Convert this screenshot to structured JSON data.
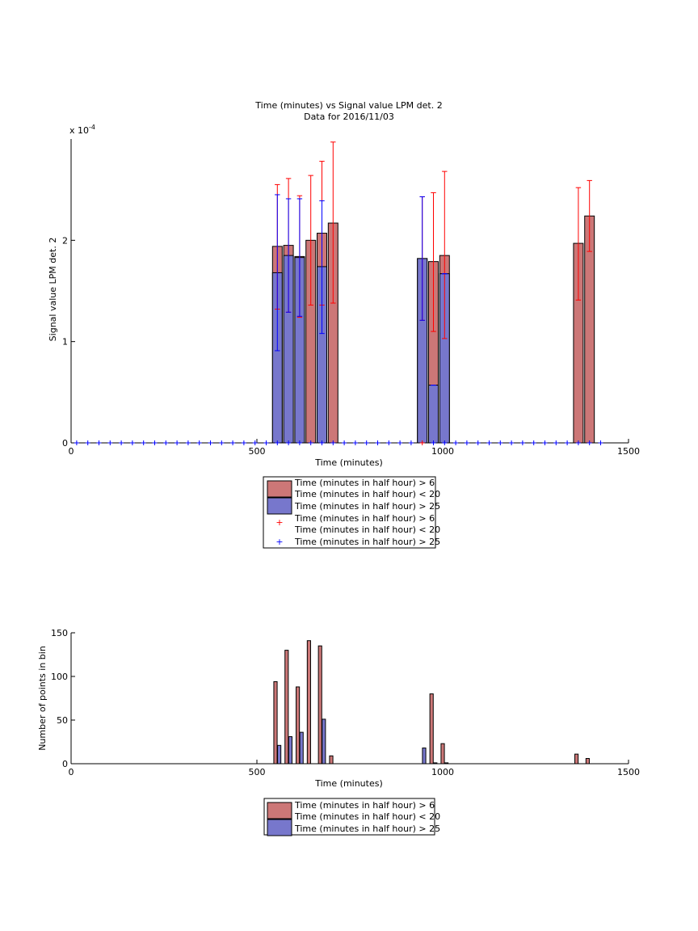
{
  "colors": {
    "red_fill": "#cc7777",
    "red_line": "#ff0000",
    "blue_fill": "#7777cc",
    "blue_line": "#0000ff",
    "axis": "#000000"
  },
  "chart_data": [
    {
      "type": "bar",
      "title": "Time (minutes) vs Signal value LPM det. 2",
      "subtitle": "Data for 2016/11/03",
      "xlabel": "Time (minutes)",
      "ylabel": "Signal value LPM det. 2",
      "y_exponent_label": "x 10",
      "y_exponent_power": "-4",
      "xlim": [
        0,
        1500
      ],
      "ylim": [
        0,
        0.0003
      ],
      "xticks": [
        0,
        500,
        1000,
        1500
      ],
      "xtick_labels": [
        "0",
        "500",
        "1000",
        "1500"
      ],
      "yticks": [
        0,
        0.0001,
        0.0002
      ],
      "ytick_labels": [
        "0",
        "1",
        "2"
      ],
      "grid": false,
      "legend_position": "below",
      "series": [
        {
          "name": "Time (minutes in half hour) > 6 Time (minutes in half hour) < 20",
          "kind": "bar",
          "color": "#cc7777",
          "points": [
            {
              "x": 555,
              "y": 0.000194,
              "err_low": 0.000132,
              "err_high": 0.000255
            },
            {
              "x": 585,
              "y": 0.000195,
              "err_low": 0.000129,
              "err_high": 0.000261
            },
            {
              "x": 615,
              "y": 0.000184,
              "err_low": 0.000124,
              "err_high": 0.000244
            },
            {
              "x": 645,
              "y": 0.0002,
              "err_low": 0.000136,
              "err_high": 0.000264
            },
            {
              "x": 675,
              "y": 0.000207,
              "err_low": 0.000136,
              "err_high": 0.000278
            },
            {
              "x": 705,
              "y": 0.000217,
              "err_low": 0.000138,
              "err_high": 0.000297
            },
            {
              "x": 945,
              "y": 0.000182,
              "err_low": 0.000121,
              "err_high": 0.000243
            },
            {
              "x": 975,
              "y": 0.000179,
              "err_low": 0.00011,
              "err_high": 0.000247
            },
            {
              "x": 1005,
              "y": 0.000185,
              "err_low": 0.000103,
              "err_high": 0.000268
            },
            {
              "x": 1365,
              "y": 0.000197,
              "err_low": 0.000141,
              "err_high": 0.000252
            },
            {
              "x": 1395,
              "y": 0.000224,
              "err_low": 0.000189,
              "err_high": 0.000259
            }
          ]
        },
        {
          "name": "Time (minutes in half hour) > 25",
          "kind": "bar",
          "color": "#7777cc",
          "points": [
            {
              "x": 555,
              "y": 0.000168,
              "err_low": 9.1e-05,
              "err_high": 0.000245
            },
            {
              "x": 585,
              "y": 0.000185,
              "err_low": 0.000129,
              "err_high": 0.000241
            },
            {
              "x": 615,
              "y": 0.000183,
              "err_low": 0.000125,
              "err_high": 0.000241
            },
            {
              "x": 675,
              "y": 0.000174,
              "err_low": 0.000108,
              "err_high": 0.000239
            },
            {
              "x": 945,
              "y": 0.000182,
              "err_low": 0.000121,
              "err_high": 0.000243
            },
            {
              "x": 975,
              "y": 5.7e-05,
              "err_low": 5.7e-05,
              "err_high": 5.7e-05
            },
            {
              "x": 1005,
              "y": 0.000167,
              "err_low": 0.000167,
              "err_high": 0.000167
            }
          ]
        },
        {
          "name": "Time (minutes in half hour) > 6 Time (minutes in half hour) < 20",
          "kind": "marker",
          "marker": "+",
          "color": "#ff0000",
          "x": [
            945
          ],
          "y": [
            0
          ]
        },
        {
          "name": "Time (minutes in half hour) > 25",
          "kind": "marker",
          "marker": "+",
          "color": "#0000ff",
          "x": [
            15,
            45,
            75,
            105,
            135,
            165,
            195,
            225,
            255,
            285,
            315,
            345,
            375,
            405,
            435,
            465,
            495,
            525,
            555,
            585,
            615,
            645,
            675,
            705,
            735,
            765,
            795,
            825,
            855,
            885,
            915,
            975,
            1005,
            1035,
            1065,
            1095,
            1125,
            1155,
            1185,
            1215,
            1245,
            1275,
            1305,
            1335,
            1365,
            1395,
            1425
          ],
          "y": [
            0,
            0,
            0,
            0,
            0,
            0,
            0,
            0,
            0,
            0,
            0,
            0,
            0,
            0,
            0,
            0,
            0,
            0,
            0,
            0,
            0,
            0,
            0,
            0,
            0,
            0,
            0,
            0,
            0,
            0,
            0,
            0,
            0,
            0,
            0,
            0,
            0,
            0,
            0,
            0,
            0,
            0,
            0,
            0,
            0,
            0,
            0
          ]
        }
      ],
      "legend": [
        {
          "label_line1": "Time (minutes in half hour) > 6",
          "label_line2": "Time (minutes in half hour) < 20",
          "symbol": "patch",
          "color": "#cc7777"
        },
        {
          "label_line1": "Time (minutes in half hour) > 25",
          "symbol": "patch",
          "color": "#7777cc"
        },
        {
          "label_line1": "Time (minutes in half hour) > 6",
          "label_line2": "Time (minutes in half hour) < 20",
          "symbol": "+",
          "color": "#ff0000"
        },
        {
          "label_line1": "Time (minutes in half hour) > 25",
          "symbol": "+",
          "color": "#0000ff"
        }
      ]
    },
    {
      "type": "bar",
      "title": "",
      "xlabel": "Time (minutes)",
      "ylabel": "Number of points in bin",
      "xlim": [
        0,
        1500
      ],
      "ylim": [
        0,
        150
      ],
      "xticks": [
        0,
        500,
        1000,
        1500
      ],
      "xtick_labels": [
        "0",
        "500",
        "1000",
        "1500"
      ],
      "yticks": [
        0,
        50,
        100,
        150
      ],
      "ytick_labels": [
        "0",
        "50",
        "100",
        "150"
      ],
      "grid": false,
      "legend_position": "below",
      "series": [
        {
          "name": "Time (minutes in half hour) > 6 Time (minutes in half hour) < 20",
          "color": "#cc7777",
          "x": [
            550,
            580,
            610,
            640,
            670,
            700,
            970,
            1000,
            1360,
            1390
          ],
          "values": [
            94,
            130,
            88,
            141,
            135,
            9,
            80,
            23,
            11,
            6
          ]
        },
        {
          "name": "Time (minutes in half hour) > 25",
          "color": "#7777cc",
          "x": [
            560,
            590,
            620,
            680,
            950,
            980,
            1010
          ],
          "values": [
            21,
            31,
            36,
            51,
            18,
            1,
            1
          ]
        }
      ],
      "legend": [
        {
          "label_line1": "Time (minutes in half hour) > 6",
          "label_line2": "Time (minutes in half hour) < 20",
          "symbol": "patch",
          "color": "#cc7777"
        },
        {
          "label_line1": "Time (minutes in half hour) > 25",
          "symbol": "patch",
          "color": "#7777cc"
        }
      ]
    }
  ]
}
